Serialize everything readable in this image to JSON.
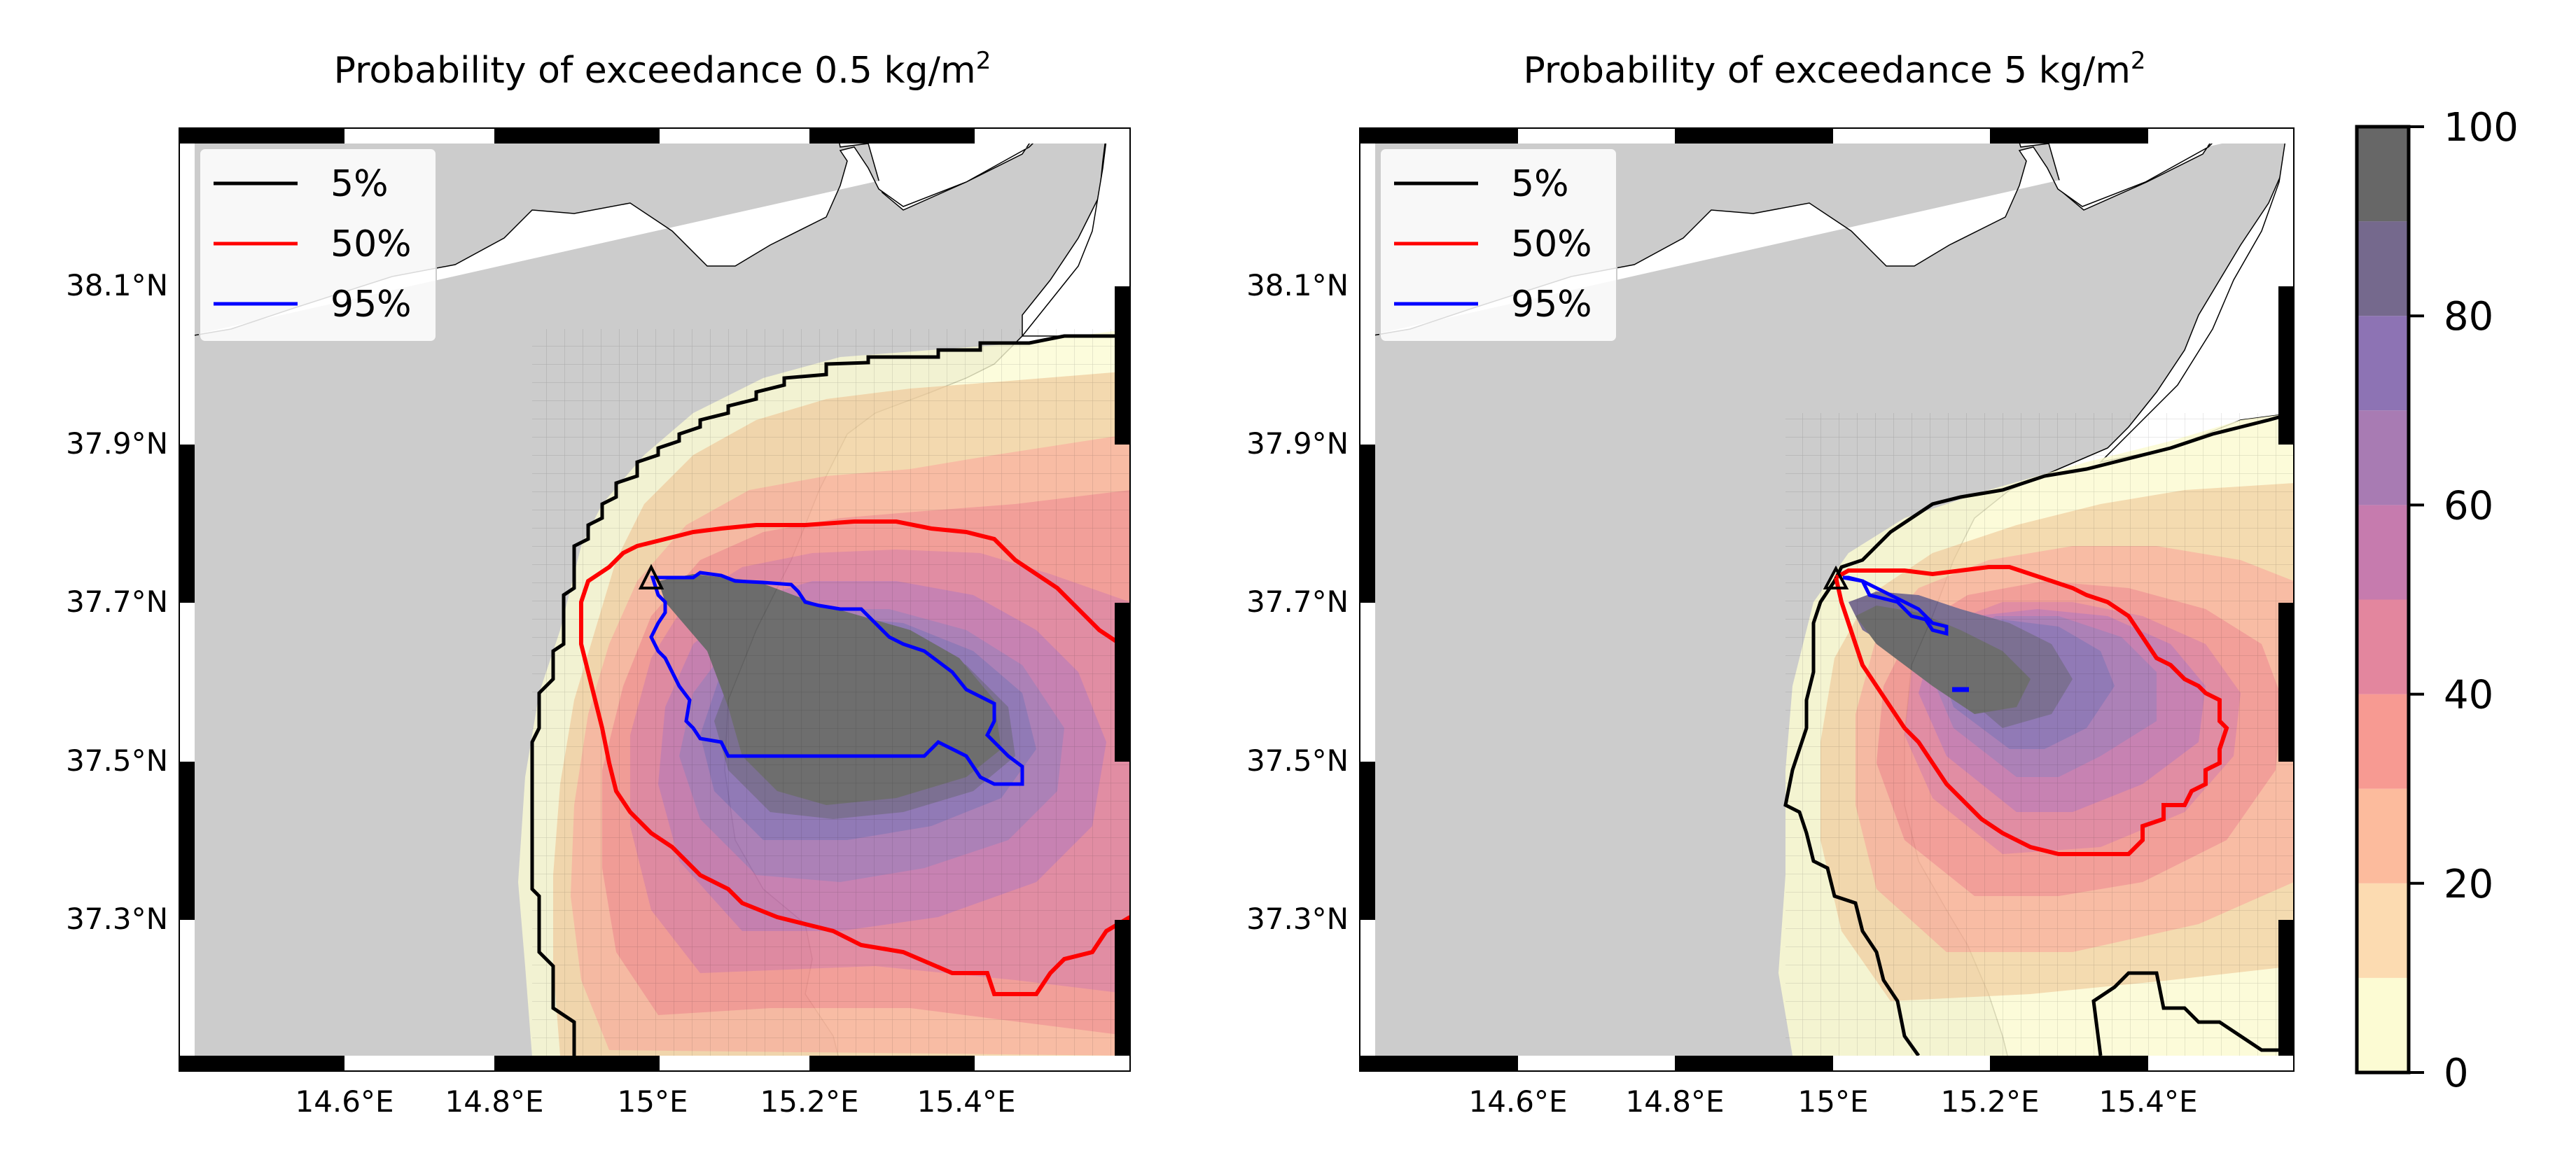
{
  "panels": [
    {
      "title": "Probability of exceedance 0.5 kg/m",
      "title_sup": "2",
      "legend": [
        {
          "label": "5%",
          "color": "#000000"
        },
        {
          "label": "50%",
          "color": "#ff0000"
        },
        {
          "label": "95%",
          "color": "#0000ff"
        }
      ]
    },
    {
      "title": "Probability of exceedance 5 kg/m",
      "title_sup": "2",
      "legend": [
        {
          "label": "5%",
          "color": "#000000"
        },
        {
          "label": "50%",
          "color": "#ff0000"
        },
        {
          "label": "95%",
          "color": "#0000ff"
        }
      ]
    }
  ],
  "axes": {
    "lat_ticks": [
      "38.1°N",
      "37.9°N",
      "37.7°N",
      "37.5°N",
      "37.3°N"
    ],
    "lon_ticks": [
      "14.6°E",
      "14.8°E",
      "15°E",
      "15.2°E",
      "15.4°E"
    ]
  },
  "colorbar": {
    "ticks": [
      "0",
      "20",
      "40",
      "60",
      "80",
      "100"
    ],
    "range": [
      0,
      100
    ],
    "levels": [
      0,
      10,
      20,
      30,
      40,
      50,
      60,
      70,
      80,
      90,
      100
    ],
    "colors": [
      "#fcfbd3",
      "#fcdbb1",
      "#fcbb9d",
      "#f79a92",
      "#e3869e",
      "#c67bae",
      "#a87bb3",
      "#8d73b4",
      "#75698d",
      "#676767"
    ]
  },
  "map_colors": {
    "land": "#cccccc",
    "sea": "#ffffff"
  }
}
